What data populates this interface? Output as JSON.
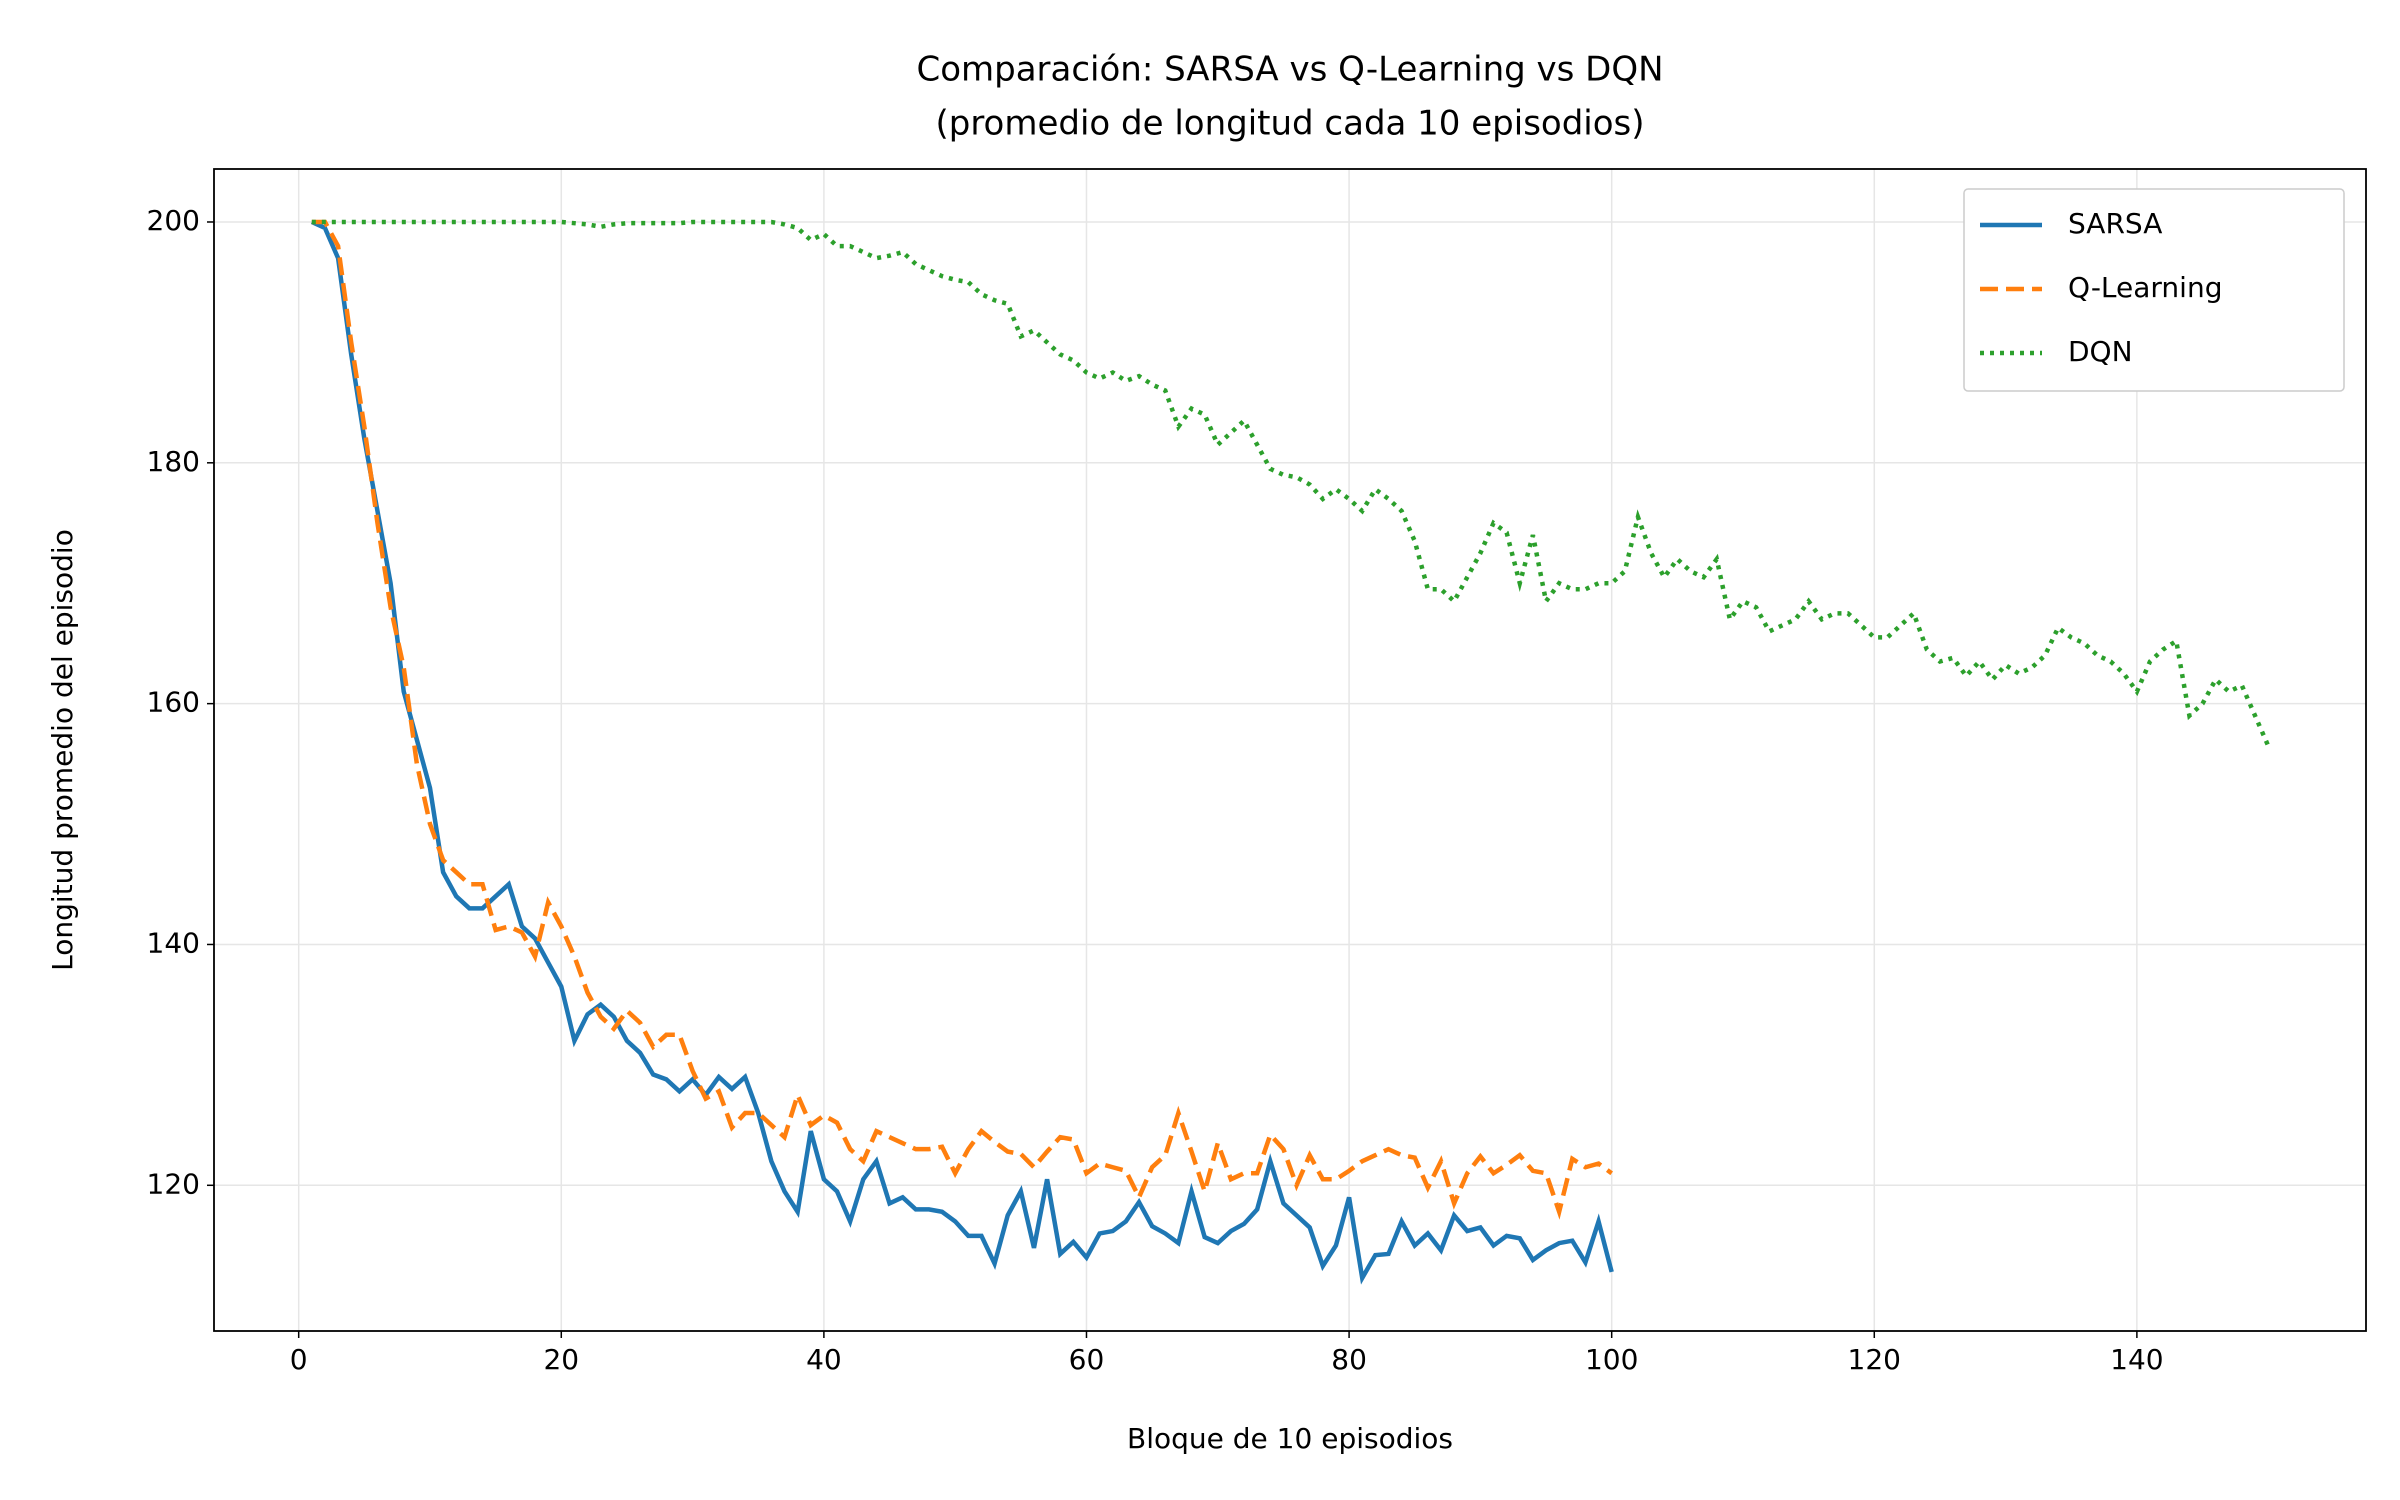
{
  "chart_data": {
    "type": "line",
    "title": "Comparación: SARSA vs Q-Learning vs DQN",
    "subtitle": "(promedio de longitud cada 10 episodios)",
    "x_label": "Bloque de 10 episodios",
    "y_label": "Longitud promedio del episodio",
    "xlim": [
      -6.45,
      157.45
    ],
    "ylim": [
      107.9,
      204.4
    ],
    "xticks": [
      0,
      20,
      40,
      60,
      80,
      100,
      120,
      140
    ],
    "yticks": [
      120,
      140,
      160,
      180,
      200
    ],
    "grid": true,
    "legend": "upper right",
    "series": [
      {
        "name": "SARSA",
        "color": "#1f77b4",
        "linestyle": "solid",
        "x": [
          1,
          2,
          3,
          4,
          5,
          6,
          7,
          8,
          9,
          10,
          11,
          12,
          13,
          14,
          15,
          16,
          17,
          18,
          19,
          20,
          21,
          22,
          23,
          24,
          25,
          26,
          27,
          28,
          29,
          30,
          31,
          32,
          33,
          34,
          35,
          36,
          37,
          38,
          39,
          40,
          41,
          42,
          43,
          44,
          45,
          46,
          47,
          48,
          49,
          50,
          51,
          52,
          53,
          54,
          55,
          56,
          57,
          58,
          59,
          60,
          61,
          62,
          63,
          64,
          65,
          66,
          67,
          68,
          69,
          70,
          71,
          72,
          73,
          74,
          75,
          76,
          77,
          78,
          79,
          80,
          81,
          82,
          83,
          84,
          85,
          86,
          87,
          88,
          89,
          90,
          91,
          92,
          93,
          94,
          95,
          96,
          97,
          98,
          99,
          100
        ],
        "values": [
          200,
          199.5,
          197,
          189,
          182,
          176,
          170,
          161,
          157,
          153,
          146,
          144,
          143,
          143,
          144,
          145,
          141.5,
          140.5,
          138.5,
          136.5,
          132,
          134.2,
          135,
          134,
          132,
          131,
          129.2,
          128.8,
          127.8,
          128.8,
          127.5,
          129,
          128,
          129,
          126,
          122,
          119.5,
          117.8,
          124.5,
          120.5,
          119.5,
          117,
          120.5,
          122,
          118.5,
          119,
          118,
          118,
          117.8,
          117,
          115.8,
          115.8,
          113.5,
          117.5,
          119.5,
          114.8,
          120.5,
          114.3,
          115.3,
          114,
          116,
          116.2,
          117,
          118.6,
          116.6,
          116,
          115.2,
          119.5,
          115.7,
          115.2,
          116.2,
          116.8,
          118,
          122,
          118.5,
          117.5,
          116.5,
          113.3,
          115,
          119,
          112.3,
          114.2,
          114.3,
          117,
          115,
          116,
          114.6,
          117.5,
          116.2,
          116.5,
          115,
          115.8,
          115.6,
          113.8,
          114.6,
          115.2,
          115.4,
          113.6,
          117,
          112.8
        ]
      },
      {
        "name": "Q-Learning",
        "color": "#ff7f0e",
        "linestyle": "dashed",
        "x": [
          1,
          2,
          3,
          4,
          5,
          6,
          7,
          8,
          9,
          10,
          11,
          12,
          13,
          14,
          15,
          16,
          17,
          18,
          19,
          20,
          21,
          22,
          23,
          24,
          25,
          26,
          27,
          28,
          29,
          30,
          31,
          32,
          33,
          34,
          35,
          36,
          37,
          38,
          39,
          40,
          41,
          42,
          43,
          44,
          45,
          46,
          47,
          48,
          49,
          50,
          51,
          52,
          53,
          54,
          55,
          56,
          57,
          58,
          59,
          60,
          61,
          62,
          63,
          64,
          65,
          66,
          67,
          68,
          69,
          70,
          71,
          72,
          73,
          74,
          75,
          76,
          77,
          78,
          79,
          80,
          81,
          82,
          83,
          84,
          85,
          86,
          87,
          88,
          89,
          90,
          91,
          92,
          93,
          94,
          95,
          96,
          97,
          98,
          99,
          100
        ],
        "values": [
          200,
          200,
          198,
          190,
          183,
          175,
          168,
          163,
          155,
          150,
          147,
          146,
          145,
          145,
          141.2,
          141.5,
          141,
          139,
          143.5,
          141.5,
          139,
          136,
          134,
          133,
          134.5,
          133.5,
          131.5,
          132.5,
          132.5,
          129.5,
          127.2,
          127.8,
          124.8,
          126,
          126,
          125,
          124,
          127.5,
          125,
          125.8,
          125.2,
          123,
          122,
          124.5,
          124,
          123.5,
          123,
          123,
          123.2,
          121,
          123,
          124.5,
          123.6,
          122.8,
          122.6,
          121.5,
          122.8,
          124,
          123.8,
          121,
          121.8,
          121.5,
          121.2,
          119,
          121.5,
          122.5,
          126,
          122.8,
          119.5,
          123.5,
          120.5,
          121,
          121,
          124.2,
          123,
          120,
          122.5,
          120.5,
          120.5,
          121.2,
          122,
          122.5,
          123,
          122.5,
          122.3,
          119.8,
          122,
          118.5,
          121,
          122.4,
          121,
          121.7,
          122.5,
          121.2,
          121,
          117.8,
          122.2,
          121.5,
          121.8,
          121
        ]
      },
      {
        "name": "DQN",
        "color": "#2ca02c",
        "linestyle": "dotted",
        "x": [
          1,
          2,
          3,
          4,
          5,
          6,
          7,
          8,
          9,
          10,
          11,
          12,
          13,
          14,
          15,
          16,
          17,
          18,
          19,
          20,
          21,
          22,
          23,
          24,
          25,
          26,
          27,
          28,
          29,
          30,
          31,
          32,
          33,
          34,
          35,
          36,
          37,
          38,
          39,
          40,
          41,
          42,
          43,
          44,
          45,
          46,
          47,
          48,
          49,
          50,
          51,
          52,
          53,
          54,
          55,
          56,
          57,
          58,
          59,
          60,
          61,
          62,
          63,
          64,
          65,
          66,
          67,
          68,
          69,
          70,
          71,
          72,
          73,
          74,
          75,
          76,
          77,
          78,
          79,
          80,
          81,
          82,
          83,
          84,
          85,
          86,
          87,
          88,
          89,
          90,
          91,
          92,
          93,
          94,
          95,
          96,
          97,
          98,
          99,
          100,
          101,
          102,
          103,
          104,
          105,
          106,
          107,
          108,
          109,
          110,
          111,
          112,
          113,
          114,
          115,
          116,
          117,
          118,
          119,
          120,
          121,
          122,
          123,
          124,
          125,
          126,
          127,
          128,
          129,
          130,
          131,
          132,
          133,
          134,
          135,
          136,
          137,
          138,
          139,
          140,
          141,
          142,
          143,
          144,
          145,
          146,
          147,
          148,
          149,
          150
        ],
        "values": [
          200,
          200,
          200,
          200,
          200,
          200,
          200,
          200,
          200,
          200,
          200,
          200,
          200,
          200,
          200,
          200,
          200,
          200,
          200,
          200,
          199.9,
          199.8,
          199.6,
          199.8,
          199.9,
          199.9,
          199.9,
          199.9,
          199.9,
          200,
          200,
          200,
          200,
          200,
          200,
          200,
          199.8,
          199.5,
          198.5,
          199,
          198,
          198,
          197.5,
          197,
          197.2,
          197.5,
          196.5,
          196,
          195.5,
          195.2,
          195,
          194,
          193.5,
          193.2,
          190.5,
          191,
          190,
          189,
          188.5,
          187.5,
          187,
          187.5,
          186.8,
          187.2,
          186.5,
          186,
          183,
          184.5,
          184,
          181.5,
          182.5,
          183.5,
          181.5,
          179.5,
          179,
          178.8,
          178.2,
          177,
          177.8,
          177,
          176,
          177.8,
          177,
          176,
          173.5,
          169.5,
          169.5,
          168.5,
          170.5,
          172.5,
          175,
          174.2,
          170,
          174,
          168.5,
          170,
          169.5,
          169.5,
          170,
          170,
          171,
          175.5,
          172.5,
          170.5,
          172,
          171,
          170.5,
          172,
          167,
          168.5,
          168,
          166,
          166.5,
          167,
          168.5,
          167,
          167.5,
          167.5,
          166.5,
          165.5,
          165.5,
          166.5,
          167.5,
          164.5,
          163.5,
          163.8,
          162.3,
          163.5,
          162,
          163.2,
          162.5,
          163,
          164,
          166.3,
          165.5,
          165,
          164,
          163.5,
          162.5,
          161,
          163.5,
          164.5,
          165.2,
          159,
          160,
          162,
          161,
          161.5,
          159,
          156.5
        ]
      }
    ]
  }
}
